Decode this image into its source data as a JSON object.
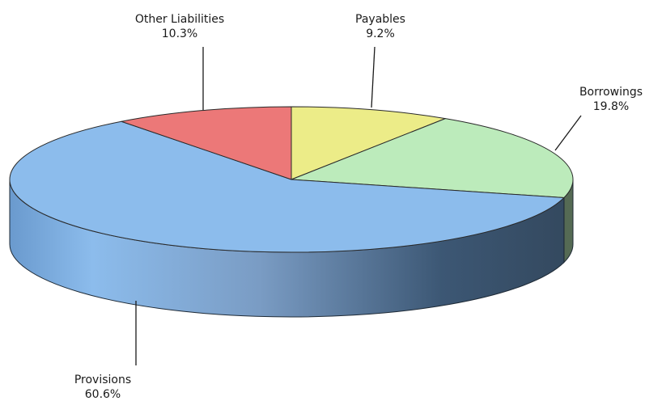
{
  "chart_data": {
    "type": "pie",
    "variant": "3d",
    "title": "",
    "slices": [
      {
        "label": "Payables",
        "value": 9.2,
        "value_label": "9.2%",
        "color": "#ecec88"
      },
      {
        "label": "Borrowings",
        "value": 19.8,
        "value_label": "19.8%",
        "color": "#bcebbb"
      },
      {
        "label": "Provisions",
        "value": 60.6,
        "value_label": "60.6%",
        "color": "#8cbcec"
      },
      {
        "label": "Other Liabilities",
        "value": 10.3,
        "value_label": "10.3%",
        "color": "#ec7878"
      }
    ],
    "legend": "none",
    "label_style": "callout-lines"
  }
}
